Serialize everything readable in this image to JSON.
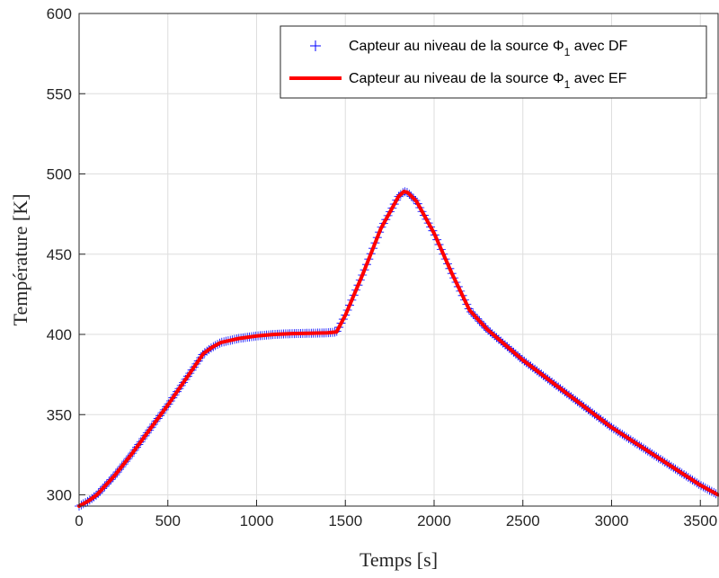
{
  "chart_data": {
    "type": "line",
    "title": "",
    "xlabel": "Temps [s]",
    "ylabel": "Température [K]",
    "xlim": [
      0,
      3600
    ],
    "ylim": [
      293,
      600
    ],
    "xticks": [
      0,
      500,
      1000,
      1500,
      2000,
      2500,
      3000,
      3500
    ],
    "yticks": [
      300,
      350,
      400,
      450,
      500,
      550,
      600
    ],
    "grid": true,
    "legend_position": "top-right",
    "series": [
      {
        "name": "Capteur au niveau de la source Φ1 avec DF",
        "legend_text": "Capteur au niveau de la source Φ",
        "legend_subscript": "1",
        "legend_suffix": " avec DF",
        "style": "markers",
        "marker": "plus",
        "color": "#0000ff",
        "x": [
          0,
          50,
          100,
          200,
          300,
          400,
          500,
          600,
          700,
          750,
          800,
          900,
          1000,
          1100,
          1200,
          1300,
          1400,
          1450,
          1500,
          1600,
          1700,
          1800,
          1830,
          1850,
          1900,
          2000,
          2100,
          2200,
          2300,
          2500,
          3000,
          3500,
          3600
        ],
        "y": [
          293,
          296,
          300,
          312,
          326,
          341,
          356,
          372,
          388,
          392,
          395,
          397.5,
          399,
          400,
          400.5,
          400.7,
          401,
          401.5,
          412,
          438,
          466,
          486,
          489,
          488.5,
          483,
          463,
          438,
          415,
          403,
          384,
          342,
          306,
          300
        ]
      },
      {
        "name": "Capteur au niveau de la source Φ1 avec EF",
        "legend_text": "Capteur au niveau de la source Φ",
        "legend_subscript": "1",
        "legend_suffix": " avec EF",
        "style": "line",
        "color": "#ff0000",
        "x": [
          0,
          50,
          100,
          200,
          300,
          400,
          500,
          600,
          700,
          750,
          800,
          900,
          1000,
          1100,
          1200,
          1300,
          1400,
          1450,
          1500,
          1600,
          1700,
          1800,
          1830,
          1850,
          1900,
          2000,
          2100,
          2200,
          2300,
          2500,
          3000,
          3500,
          3600
        ],
        "y": [
          293,
          296,
          300,
          312,
          326,
          341,
          356,
          372,
          388,
          392,
          395,
          397.5,
          399,
          400,
          400.5,
          400.7,
          401,
          401.5,
          412,
          438,
          466,
          486,
          489,
          488.5,
          483,
          463,
          438,
          415,
          403,
          384,
          342,
          306,
          300
        ]
      }
    ]
  }
}
